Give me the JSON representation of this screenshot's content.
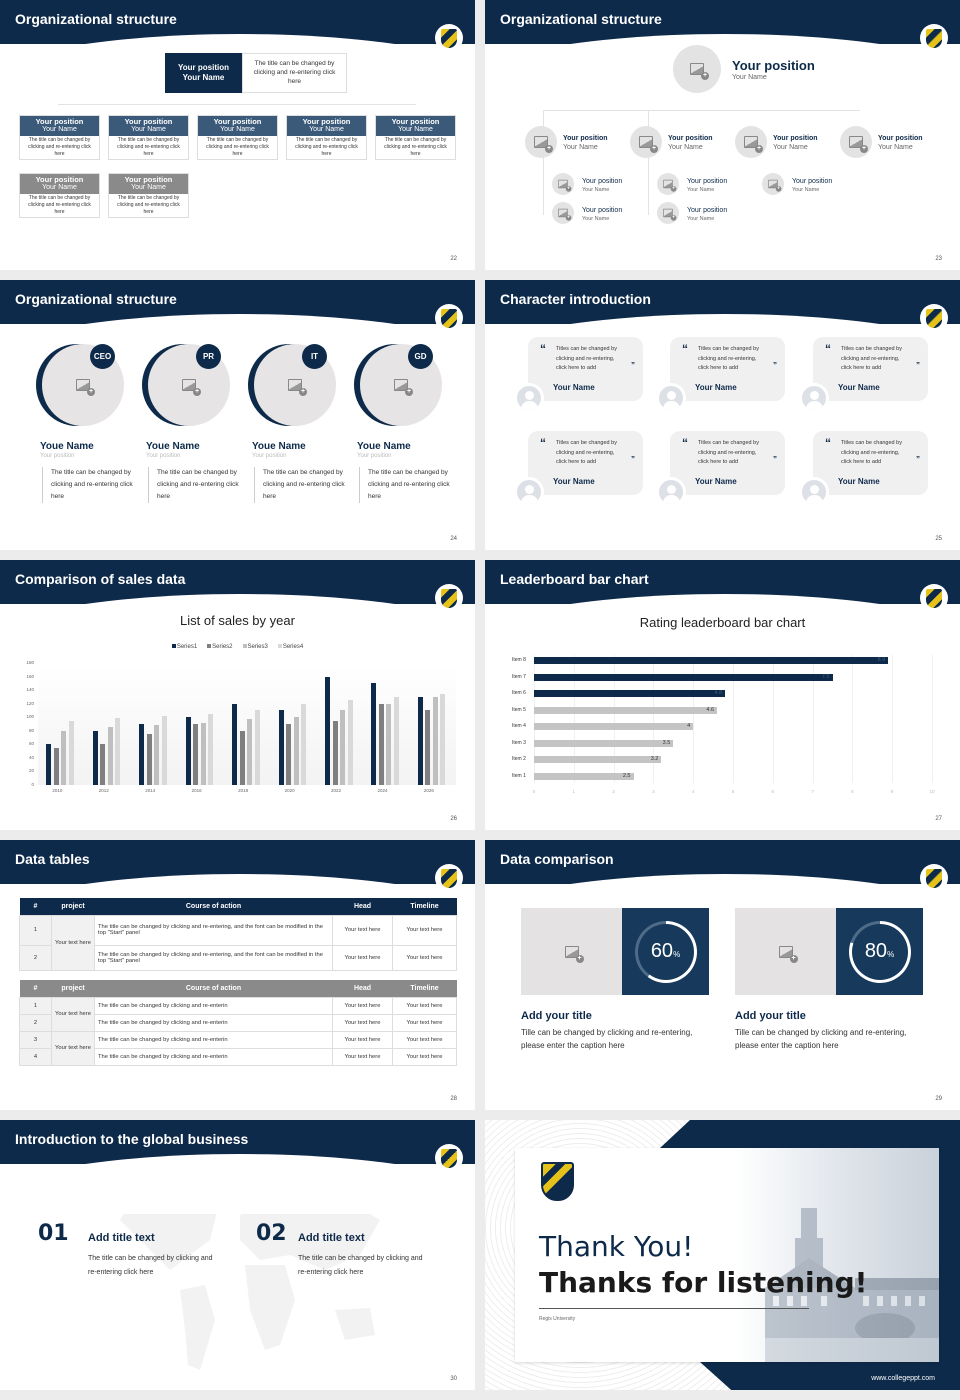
{
  "slide22": {
    "title": "Organizational structure",
    "page": "22",
    "top": {
      "position": "Your position",
      "name": "Your Name",
      "desc": "The title can be changed by clicking and re-entering click here"
    },
    "row1": [
      {
        "position": "Your position",
        "name": "Your Name",
        "desc": "The title can be changed by clicking and re-entering click here"
      },
      {
        "position": "Your position",
        "name": "Your Name",
        "desc": "The title can be changed by clicking and re-entering click here"
      },
      {
        "position": "Your position",
        "name": "Your Name",
        "desc": "The title can be changed by clicking and re-entering click here"
      },
      {
        "position": "Your position",
        "name": "Your Name",
        "desc": "The title can be changed by clicking and re-entering click here"
      },
      {
        "position": "Your position",
        "name": "Your Name",
        "desc": "The title can be changed by clicking and re-entering click here"
      }
    ],
    "row2": [
      {
        "position": "Your position",
        "name": "Your Name",
        "desc": "The title can be changed by clicking and re-entering click here"
      },
      {
        "position": "Your position",
        "name": "Your Name",
        "desc": "The title can be changed by clicking and re-entering click here"
      }
    ]
  },
  "slide23": {
    "title": "Organizational structure",
    "page": "23",
    "top": {
      "position": "Your position",
      "name": "Your Name"
    },
    "level2": [
      {
        "position": "Your position",
        "name": "Your Name"
      },
      {
        "position": "Your position",
        "name": "Your Name"
      },
      {
        "position": "Your position",
        "name": "Your Name"
      },
      {
        "position": "Your position",
        "name": "Your Name"
      }
    ],
    "level3": [
      {
        "position": "Your position",
        "name": "Your Name"
      },
      {
        "position": "Your position",
        "name": "Your Name"
      },
      {
        "position": "Your position",
        "name": "Your Name"
      },
      {
        "position": "Your position",
        "name": "Your Name"
      },
      {
        "position": "Your position",
        "name": "Your Name"
      }
    ]
  },
  "slide24": {
    "title": "Organizational structure",
    "page": "24",
    "members": [
      {
        "badge": "CEO",
        "name": "Youe Name",
        "position": "Your position",
        "desc": "The title can be changed by clicking and re-entering click here"
      },
      {
        "badge": "PR",
        "name": "Youe Name",
        "position": "Your position",
        "desc": "The title can be changed by clicking and re-entering click here"
      },
      {
        "badge": "IT",
        "name": "Youe Name",
        "position": "Your position",
        "desc": "The title can be changed by clicking and re-entering click here"
      },
      {
        "badge": "GD",
        "name": "Youe Name",
        "position": "Your position",
        "desc": "The title can be changed by clicking and re-entering click here"
      }
    ]
  },
  "slide25": {
    "title": "Character introduction",
    "page": "25",
    "quote_open": "“",
    "quote_close": "”",
    "cards": [
      {
        "text": "Titles can be changed by clicking and re-entering, click here to add",
        "name": "Your Name"
      },
      {
        "text": "Titles can be changed by clicking and re-entering, click here to add",
        "name": "Your Name"
      },
      {
        "text": "Titles can be changed by clicking and re-entering, click here to add",
        "name": "Your Name"
      },
      {
        "text": "Titles can be changed by clicking and re-entering, click here to add",
        "name": "Your Name"
      },
      {
        "text": "Titles can be changed by clicking and re-entering, click here to add",
        "name": "Your Name"
      },
      {
        "text": "Titles can be changed by clicking and re-entering, click here to add",
        "name": "Your Name"
      }
    ]
  },
  "slide26": {
    "title": "Comparison of sales data",
    "page": "26"
  },
  "slide27": {
    "title": "Leaderboard bar chart",
    "page": "27"
  },
  "slide28": {
    "title": "Data tables",
    "page": "28",
    "headers": [
      "#",
      "project",
      "Course of action",
      "Head",
      "Timeline"
    ],
    "table1": {
      "project": "Your text here",
      "rows": [
        {
          "num": "1",
          "action": "The title can be changed by clicking and re-entering, and the font can be modified in the top \"Start\" panel",
          "head": "Your text here",
          "timeline": "Your text here"
        },
        {
          "num": "2",
          "action": "The title can be changed by clicking and re-entering, and the font can be modified in the top \"Start\" panel",
          "head": "Your text here",
          "timeline": "Your text here"
        }
      ]
    },
    "table2": {
      "projects": [
        "Your text here",
        "Your text here"
      ],
      "rows": [
        {
          "num": "1",
          "action": "The title can be changed by clicking and re-enterin",
          "head": "Your text here",
          "timeline": "Your text here"
        },
        {
          "num": "2",
          "action": "The title can be changed by clicking and re-enterin",
          "head": "Your text here",
          "timeline": "Your text here"
        },
        {
          "num": "3",
          "action": "The title can be changed by clicking and re-enterin",
          "head": "Your text here",
          "timeline": "Your text here"
        },
        {
          "num": "4",
          "action": "The title can be changed by clicking and re-enterin",
          "head": "Your text here",
          "timeline": "Your text here"
        }
      ]
    }
  },
  "slide29": {
    "title": "Data comparison",
    "page": "29",
    "items": [
      {
        "value": "60",
        "unit": "%",
        "percent": 60,
        "heading": "Add your title",
        "desc": "Tille can be changed by clicking and re-entering, please enter the caption here"
      },
      {
        "value": "80",
        "unit": "%",
        "percent": 80,
        "heading": "Add your title",
        "desc": "Tille can be changed by clicking and re-entering, please enter the caption here"
      }
    ]
  },
  "slide30": {
    "title": "Introduction to the global business",
    "page": "30",
    "items": [
      {
        "num": "01",
        "heading": "Add title text",
        "desc": "The title can be changed by clicking and re-entering click here"
      },
      {
        "num": "02",
        "heading": "Add title text",
        "desc": "The title can be changed by clicking and re-entering click here"
      }
    ]
  },
  "slide31": {
    "line1": "Thank You!",
    "line2": "Thanks for listening!",
    "university": "Regis University",
    "url": "www.collegeppt.com"
  },
  "colors": {
    "navy": "#0e2a4a",
    "steel": "#3b5a7a",
    "gray": "#8a8a8a",
    "light": "#bdbdbd",
    "gold": "#e5c21a"
  },
  "chart_data": [
    {
      "type": "bar",
      "title": "List of sales by year",
      "categories": [
        "2010",
        "2012",
        "2014",
        "2016",
        "2018",
        "2020",
        "2022",
        "2024",
        "2026"
      ],
      "series": [
        {
          "name": "Series1",
          "color": "#0e2a4a",
          "values": [
            60,
            80,
            90,
            100,
            120,
            110,
            160,
            150,
            130
          ]
        },
        {
          "name": "Series2",
          "color": "#7f7f7f",
          "values": [
            55,
            60,
            75,
            90,
            80,
            90,
            95,
            120,
            110
          ]
        },
        {
          "name": "Series3",
          "color": "#bfbfbf",
          "values": [
            80,
            86,
            88,
            92,
            98,
            100,
            110,
            120,
            130
          ]
        },
        {
          "name": "Series4",
          "color": "#d9d9d9",
          "values": [
            95,
            99,
            102,
            105,
            110,
            120,
            126,
            130,
            135
          ]
        }
      ],
      "yticks": [
        0,
        20,
        40,
        60,
        80,
        100,
        120,
        140,
        160,
        180
      ],
      "ylim": [
        0,
        180
      ],
      "legend_position": "top",
      "xlabel": "",
      "ylabel": ""
    },
    {
      "type": "bar",
      "orientation": "horizontal",
      "title": "Rating leaderboard bar chart",
      "categories": [
        "Item 8",
        "Item 7",
        "Item 6",
        "Item 5",
        "Item 4",
        "Item 3",
        "Item 2",
        "Item 1"
      ],
      "values": [
        8.9,
        7.5,
        4.8,
        4.6,
        4,
        3.5,
        3.2,
        2.5
      ],
      "labels": [
        "8.9",
        "7.5",
        "4.8",
        "4.6",
        "4",
        "3.5",
        "3.2",
        "2.5"
      ],
      "highlight": [
        true,
        true,
        true,
        false,
        false,
        false,
        false,
        false
      ],
      "xticks": [
        0,
        1,
        2,
        3,
        4,
        5,
        6,
        7,
        8,
        9,
        10
      ],
      "xlim": [
        0,
        10
      ],
      "xlabel": "",
      "ylabel": ""
    }
  ]
}
